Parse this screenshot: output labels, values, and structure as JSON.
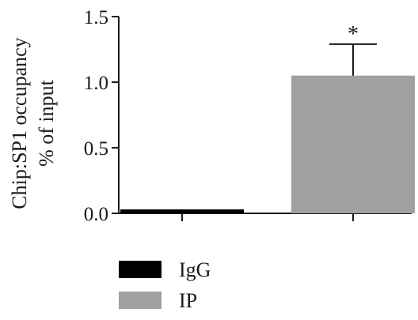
{
  "chart_data": {
    "type": "bar",
    "categories": [
      "IgG",
      "IP"
    ],
    "values": [
      0.03,
      1.05
    ],
    "errors": [
      0.0,
      0.24
    ],
    "colors": [
      "#000000",
      "#a0a0a0"
    ],
    "ylabel_lines": [
      "Chip:SP1 occupancy",
      "% of input"
    ],
    "ylim": [
      0,
      1.5
    ],
    "yticks": [
      "0.0",
      "0.5",
      "1.0",
      "1.5"
    ],
    "ytick_values": [
      0.0,
      0.5,
      1.0,
      1.5
    ],
    "annotations": [
      {
        "category": "IP",
        "text": "*"
      }
    ],
    "legend": {
      "position": "bottom-left",
      "items": [
        {
          "label": "IgG",
          "color": "#000000"
        },
        {
          "label": "IP",
          "color": "#a0a0a0"
        }
      ]
    },
    "grid": false
  }
}
